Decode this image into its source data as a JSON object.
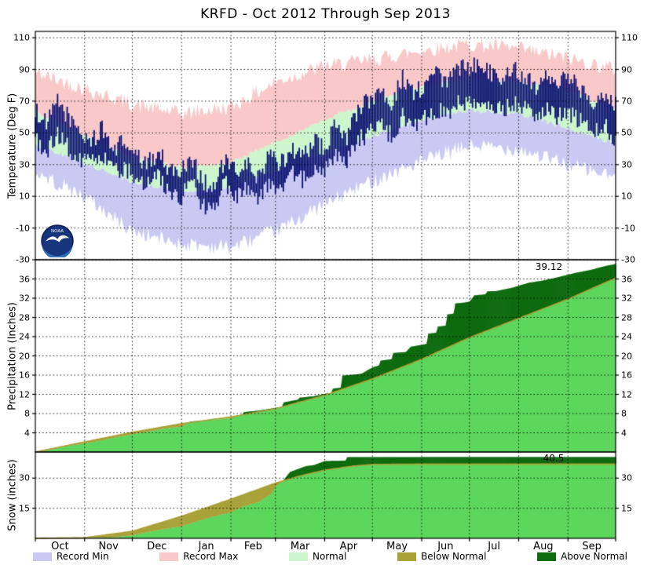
{
  "title": "KRFD - Oct 2012 Through Sep 2013",
  "months": [
    "Oct",
    "Nov",
    "Dec",
    "Jan",
    "Feb",
    "Mar",
    "Apr",
    "May",
    "Jun",
    "Jul",
    "Aug",
    "Sep"
  ],
  "month_start_days": [
    0,
    31,
    61,
    92,
    123,
    151,
    182,
    212,
    243,
    273,
    304,
    335,
    365
  ],
  "colors": {
    "record_min": "#c9c9f3",
    "record_max": "#f9c9c9",
    "normal_band": "#ccf6cc",
    "actual_temp": "#0b1172",
    "cumulative_fill": "#5dd65d",
    "above_normal": "#0e6b0e",
    "below_normal": "#a9a239",
    "grid": "#000000",
    "background": "#ffffff"
  },
  "panels": {
    "temperature": {
      "ylabel": "Temperature (Deg F)",
      "ticks": [
        110,
        90,
        70,
        50,
        30,
        10,
        -10,
        -30
      ],
      "ymin": -30,
      "ymax": 114
    },
    "precipitation": {
      "ylabel": "Precipitation (Inches)",
      "ticks": [
        36,
        32,
        28,
        24,
        20,
        16,
        12,
        8,
        4
      ],
      "ymin": 0,
      "ymax": 40
    },
    "snow": {
      "ylabel": "Snow (inches)",
      "ticks": [
        30,
        15
      ],
      "ymin": 0,
      "ymax": 43
    }
  },
  "legend": {
    "items": [
      {
        "label": "Record Min",
        "color": "record_min"
      },
      {
        "label": "Record Max",
        "color": "record_max"
      },
      {
        "label": "Normal",
        "color": "normal_band"
      },
      {
        "label": "Below Normal",
        "color": "below_normal"
      },
      {
        "label": "Above Normal",
        "color": "above_normal"
      }
    ]
  },
  "annotations": {
    "precip": {
      "label": "39.12",
      "day": 323,
      "value": 38.5
    },
    "snow": {
      "label": "40.5",
      "day": 326,
      "value": 39.8
    }
  },
  "logo": {
    "text": "NOAA"
  },
  "chart_data": [
    {
      "type": "area",
      "title": "Daily temperature with records and normals",
      "ylabel": "Temperature (Deg F)",
      "ylim": [
        -30,
        114
      ],
      "x_unit": "day of period (Oct 1 = 0)",
      "record_max": [
        88,
        78,
        68,
        62,
        66,
        82,
        92,
        96,
        102,
        106,
        103,
        97,
        90
      ],
      "record_min": [
        25,
        10,
        -12,
        -20,
        -22,
        -12,
        5,
        20,
        32,
        42,
        40,
        30,
        22
      ],
      "normal_high": [
        64,
        48,
        34,
        28,
        31,
        44,
        58,
        70,
        79,
        84,
        82,
        76,
        65
      ],
      "normal_low": [
        42,
        31,
        19,
        13,
        15,
        26,
        37,
        48,
        58,
        64,
        62,
        53,
        43
      ],
      "actual_x_step_days": 7,
      "actual_high": [
        65,
        55,
        70,
        60,
        50,
        45,
        52,
        40,
        45,
        35,
        30,
        38,
        28,
        25,
        35,
        20,
        15,
        32,
        25,
        30,
        22,
        35,
        30,
        40,
        35,
        45,
        40,
        55,
        48,
        65,
        70,
        78,
        68,
        85,
        75,
        80,
        88,
        82,
        90,
        92,
        95,
        88,
        85,
        90,
        86,
        80,
        88,
        82,
        85,
        78,
        70,
        75,
        68
      ],
      "actual_low": [
        45,
        38,
        48,
        40,
        33,
        30,
        35,
        25,
        28,
        22,
        18,
        25,
        12,
        8,
        20,
        5,
        0,
        18,
        10,
        15,
        8,
        20,
        15,
        25,
        20,
        28,
        28,
        35,
        32,
        45,
        50,
        55,
        48,
        60,
        55,
        60,
        65,
        62,
        68,
        70,
        72,
        68,
        65,
        68,
        66,
        62,
        66,
        60,
        62,
        58,
        52,
        55,
        48
      ],
      "record_jitter_amp": 5,
      "normal_jitter_amp": 1.5,
      "actual_jitter_amp": 6
    },
    {
      "type": "area",
      "title": "Cumulative precipitation vs normal",
      "ylabel": "Precipitation (Inches)",
      "ylim": [
        0,
        40
      ],
      "final_total": 39.12,
      "normal": {
        "x": [
          0,
          31,
          61,
          92,
          123,
          151,
          182,
          212,
          243,
          273,
          304,
          335,
          365
        ],
        "y": [
          0,
          2.1,
          4.1,
          5.9,
          7.3,
          9.0,
          11.8,
          15.2,
          19.3,
          23.8,
          27.8,
          31.8,
          36.2
        ]
      },
      "actual": {
        "x": [
          0,
          10,
          20,
          31,
          40,
          50,
          61,
          70,
          80,
          92,
          96,
          97,
          110,
          118,
          123,
          130,
          131,
          140,
          151,
          155,
          156,
          165,
          166,
          175,
          182,
          186,
          187,
          192,
          193,
          200,
          205,
          212,
          216,
          217,
          224,
          225,
          233,
          236,
          243,
          246,
          247,
          252,
          253,
          258,
          259,
          263,
          264,
          270,
          273,
          276,
          283,
          284,
          290,
          300,
          304,
          310,
          318,
          325,
          335,
          340,
          348,
          355,
          360,
          365
        ],
        "y": [
          0,
          0.5,
          1.2,
          1.8,
          2.3,
          3.0,
          3.7,
          4.2,
          4.8,
          5.3,
          5.9,
          6.3,
          6.7,
          6.9,
          7.0,
          7.8,
          8.3,
          8.6,
          9.2,
          9.4,
          10.3,
          10.9,
          11.3,
          11.6,
          12.1,
          12.3,
          13.2,
          13.4,
          15.9,
          16.1,
          16.3,
          17.6,
          18.0,
          19.0,
          19.3,
          20.6,
          20.8,
          21.9,
          22.3,
          22.5,
          24.6,
          24.8,
          26.1,
          26.3,
          28.6,
          28.8,
          30.9,
          31.1,
          31.3,
          32.6,
          32.8,
          33.4,
          33.5,
          34.2,
          34.6,
          35.2,
          35.6,
          36.1,
          36.9,
          37.3,
          37.8,
          38.4,
          38.8,
          39.12
        ]
      }
    },
    {
      "type": "area",
      "title": "Cumulative snowfall vs normal",
      "ylabel": "Snow (inches)",
      "ylim": [
        0,
        43
      ],
      "final_total": 40.5,
      "normal": {
        "x": [
          0,
          31,
          61,
          92,
          123,
          151,
          166,
          182,
          200,
          212,
          243,
          365
        ],
        "y": [
          0,
          0.3,
          3.5,
          11.0,
          19.5,
          27.5,
          31.0,
          34.0,
          36.0,
          36.8,
          37.0,
          37.0
        ]
      },
      "actual": {
        "x": [
          0,
          31,
          50,
          61,
          70,
          80,
          92,
          100,
          110,
          123,
          131,
          140,
          148,
          151,
          155,
          160,
          165,
          170,
          175,
          182,
          195,
          196,
          365
        ],
        "y": [
          0,
          0.1,
          0.5,
          1.5,
          3.0,
          4.5,
          6.0,
          8.0,
          10.5,
          13.0,
          16.0,
          18.0,
          22.0,
          26.0,
          28.0,
          33.0,
          34.5,
          36.0,
          36.5,
          38.5,
          38.7,
          40.5,
          40.5
        ]
      }
    }
  ]
}
